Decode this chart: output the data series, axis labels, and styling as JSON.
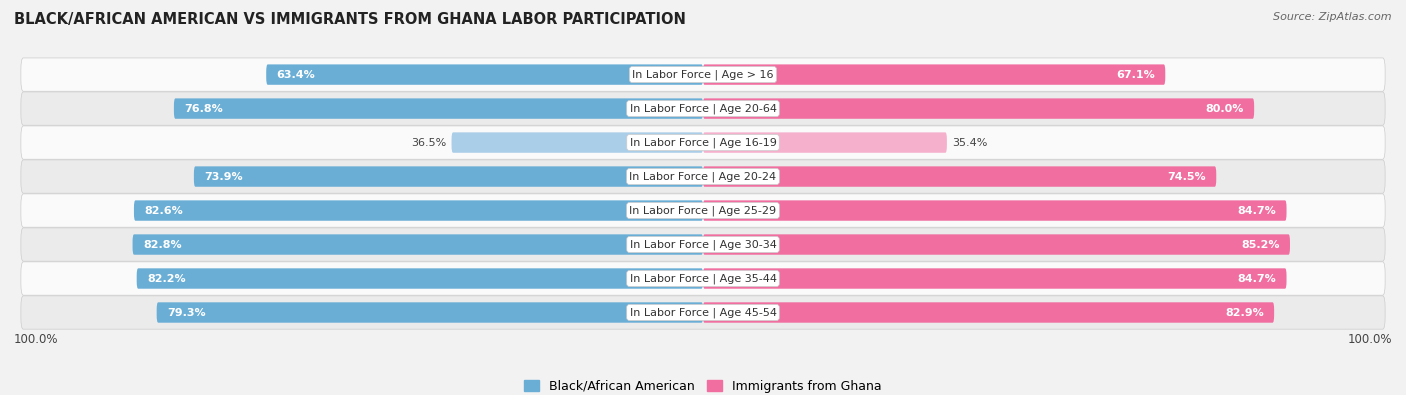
{
  "title": "BLACK/AFRICAN AMERICAN VS IMMIGRANTS FROM GHANA LABOR PARTICIPATION",
  "source": "Source: ZipAtlas.com",
  "categories": [
    "In Labor Force | Age > 16",
    "In Labor Force | Age 20-64",
    "In Labor Force | Age 16-19",
    "In Labor Force | Age 20-24",
    "In Labor Force | Age 25-29",
    "In Labor Force | Age 30-34",
    "In Labor Force | Age 35-44",
    "In Labor Force | Age 45-54"
  ],
  "black_values": [
    63.4,
    76.8,
    36.5,
    73.9,
    82.6,
    82.8,
    82.2,
    79.3
  ],
  "ghana_values": [
    67.1,
    80.0,
    35.4,
    74.5,
    84.7,
    85.2,
    84.7,
    82.9
  ],
  "black_color": "#6aaed6",
  "black_color_light": "#aacde8",
  "ghana_color": "#f06fa0",
  "ghana_color_light": "#f5b0cc",
  "background_color": "#f2f2f2",
  "row_bg_light": "#fafafa",
  "row_bg_dark": "#ebebeb",
  "max_value": 100.0,
  "label_fontsize": 8.0,
  "category_fontsize": 8.0,
  "title_fontsize": 10.5,
  "bar_height": 0.6
}
